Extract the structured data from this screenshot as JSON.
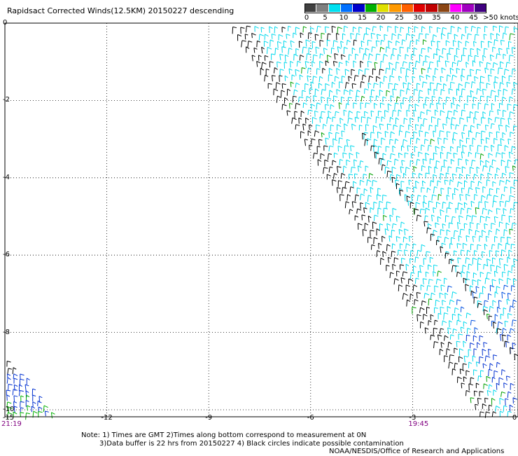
{
  "title": "Rapidsact Corrected Winds(12.5KM) 20150227 descending",
  "legend": {
    "labels": [
      "0",
      "5",
      "10",
      "15",
      "20",
      "25",
      "30",
      "35",
      "40",
      "45",
      ">50 knots"
    ],
    "colors": [
      "#404040",
      "#7f7f7f",
      "#00e0f0",
      "#0070ff",
      "#0000cc",
      "#00b000",
      "#e0e000",
      "#ff9900",
      "#ff6000",
      "#e00000",
      "#c00000",
      "#8b4513",
      "#ff00ff",
      "#a000c0",
      "#400080"
    ]
  },
  "notes": {
    "line1": "Note: 1) Times are GMT 2)Times along bottom correspond to measurement at 0N",
    "line2": "3)Data buffer is 22 hrs from 20150227 4) Black circles indicate possible contamination",
    "line3": "NOAA/NESDIS/Office of Research and Applications"
  },
  "chart_data": {
    "type": "wind_barb",
    "x_ticks": [
      "-15",
      "-12",
      "-9",
      "-6",
      "-3",
      "0"
    ],
    "y_ticks": [
      "0",
      "-2",
      "-4",
      "-6",
      "-8",
      "-10"
    ],
    "xlim": [
      -15,
      0
    ],
    "ylim": [
      -10,
      0
    ],
    "grid": true,
    "time_labels": [
      {
        "x": -15,
        "label": "21:19"
      },
      {
        "x": -3,
        "label": "19:45"
      }
    ],
    "swaths": [
      {
        "region": "northeast main swath",
        "speed_knots_range": [
          5,
          15
        ],
        "dominant_color": "cyan"
      },
      {
        "region": "southeast swath edge",
        "speed_knots_range": [
          10,
          20
        ],
        "dominant_color": "blue"
      },
      {
        "region": "southwest corner",
        "speed_knots_range": [
          10,
          25
        ],
        "dominant_color": "blue/green"
      }
    ]
  }
}
